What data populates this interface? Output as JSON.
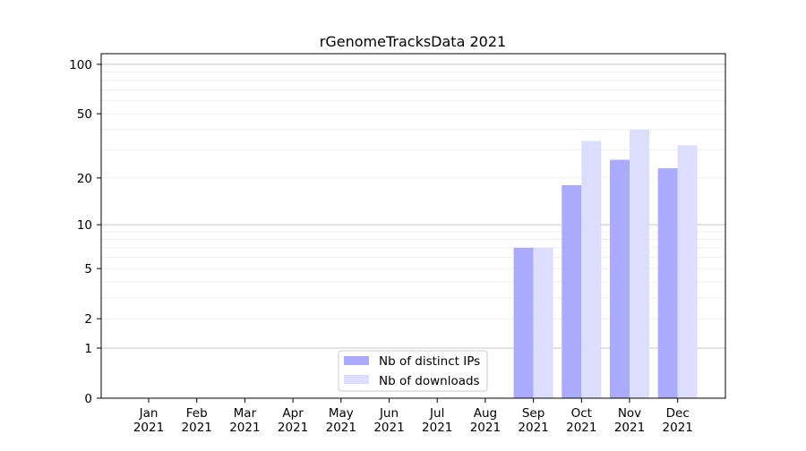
{
  "chart_data": {
    "type": "bar",
    "title": "rGenomeTracksData 2021",
    "xlabel": "",
    "ylabel": "",
    "y_scale": "log(1+y)",
    "ylim": [
      0,
      116
    ],
    "yticks": [
      0,
      1,
      2,
      5,
      10,
      20,
      50,
      100
    ],
    "ytick_labels": [
      "0",
      "1",
      "2",
      "5",
      "10",
      "20",
      "50",
      "100"
    ],
    "minor_gridlines": [
      3,
      4,
      6,
      7,
      8,
      9,
      30,
      40,
      60,
      70,
      80,
      90
    ],
    "major_gridlines": [
      1,
      10,
      100
    ],
    "grid": true,
    "legend_position": "lower-center",
    "categories": [
      {
        "month": "Jan",
        "year": "2021"
      },
      {
        "month": "Feb",
        "year": "2021"
      },
      {
        "month": "Mar",
        "year": "2021"
      },
      {
        "month": "Apr",
        "year": "2021"
      },
      {
        "month": "May",
        "year": "2021"
      },
      {
        "month": "Jun",
        "year": "2021"
      },
      {
        "month": "Jul",
        "year": "2021"
      },
      {
        "month": "Aug",
        "year": "2021"
      },
      {
        "month": "Sep",
        "year": "2021"
      },
      {
        "month": "Oct",
        "year": "2021"
      },
      {
        "month": "Nov",
        "year": "2021"
      },
      {
        "month": "Dec",
        "year": "2021"
      }
    ],
    "series": [
      {
        "name": "Nb of distinct IPs",
        "color": "#aaaaff",
        "values": [
          0,
          0,
          0,
          0,
          0,
          0,
          0,
          0,
          7,
          18,
          26,
          23
        ]
      },
      {
        "name": "Nb of downloads",
        "color": "#ddddff",
        "values": [
          0,
          0,
          0,
          0,
          0,
          0,
          0,
          0,
          7,
          34,
          40,
          32
        ]
      }
    ]
  }
}
